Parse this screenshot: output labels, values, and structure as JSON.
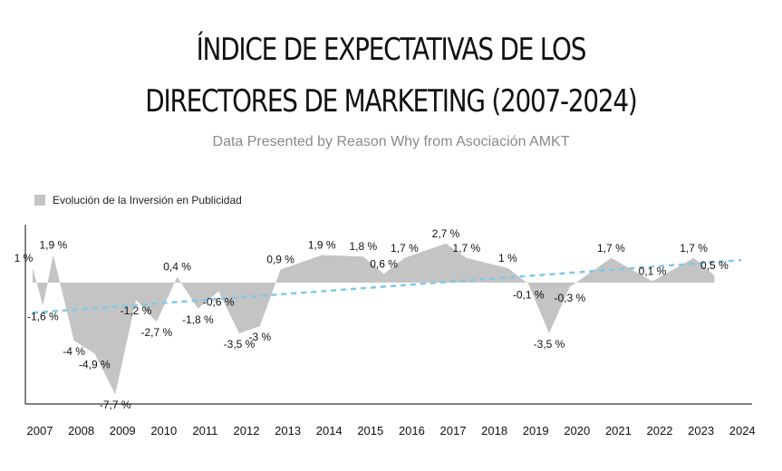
{
  "header": {
    "title_line1": "ÍNDICE DE EXPECTATIVAS DE LOS",
    "title_line2": "DIRECTORES DE MARKETING (2007-2024)",
    "subtitle": "Data Presented by Reason Why from Asociación AMKT"
  },
  "colors": {
    "area": "#c4c4c4",
    "trend": "#7fc9ea",
    "axis": "#333333"
  },
  "chart_data": {
    "type": "area",
    "title": "ÍNDICE DE EXPECTATIVAS DE LOS DIRECTORES DE MARKETING (2007-2024)",
    "subtitle": "Data Presented by Reason Why from Asociación AMKT",
    "legend": {
      "entries": [
        "Evolución de la Inversión en Publicidad"
      ],
      "position": "top-left"
    },
    "xlabel": "",
    "ylabel": "",
    "x_ticks": [
      "2007",
      "2008",
      "2009",
      "2010",
      "2011",
      "2012",
      "2013",
      "2014",
      "2015",
      "2016",
      "2017",
      "2018",
      "2019",
      "2020",
      "2021",
      "2022",
      "2023",
      "2024"
    ],
    "ylim": [
      -9,
      3
    ],
    "grid": false,
    "trendline": true,
    "series": [
      {
        "name": "Evolución de la Inversión en Publicidad",
        "points": [
          {
            "x": 2007.0,
            "y": 1.0,
            "label": "1 %"
          },
          {
            "x": 2007.25,
            "y": -1.6,
            "label": "-1,6 %"
          },
          {
            "x": 2007.5,
            "y": 1.9,
            "label": "1,9 %"
          },
          {
            "x": 2008.0,
            "y": -4.0,
            "label": "-4 %"
          },
          {
            "x": 2008.5,
            "y": -4.9,
            "label": "-4,9 %"
          },
          {
            "x": 2009.0,
            "y": -7.7,
            "label": "-7,7 %"
          },
          {
            "x": 2009.5,
            "y": -1.2,
            "label": "-1,2 %"
          },
          {
            "x": 2010.0,
            "y": -2.7,
            "label": "-2,7 %"
          },
          {
            "x": 2010.5,
            "y": 0.4,
            "label": "0,4 %"
          },
          {
            "x": 2011.0,
            "y": -1.8,
            "label": "-1,8 %"
          },
          {
            "x": 2011.5,
            "y": -0.6,
            "label": "-0,6 %"
          },
          {
            "x": 2012.0,
            "y": -3.5,
            "label": "-3,5 %"
          },
          {
            "x": 2012.5,
            "y": -3.0,
            "label": "-3 %"
          },
          {
            "x": 2013.0,
            "y": 0.9,
            "label": "0,9 %"
          },
          {
            "x": 2014.0,
            "y": 1.9,
            "label": "1,9 %"
          },
          {
            "x": 2015.0,
            "y": 1.8,
            "label": "1,8 %"
          },
          {
            "x": 2015.5,
            "y": 0.6,
            "label": "0,6 %"
          },
          {
            "x": 2016.0,
            "y": 1.7,
            "label": "1,7 %"
          },
          {
            "x": 2017.0,
            "y": 2.7,
            "label": "2,7 %"
          },
          {
            "x": 2017.5,
            "y": 1.7,
            "label": "1,7 %"
          },
          {
            "x": 2018.5,
            "y": 1.0,
            "label": "1 %"
          },
          {
            "x": 2019.0,
            "y": -0.1,
            "label": "-0,1 %"
          },
          {
            "x": 2019.5,
            "y": -3.5,
            "label": "-3,5 %"
          },
          {
            "x": 2020.0,
            "y": -0.3,
            "label": "-0,3 %"
          },
          {
            "x": 2021.0,
            "y": 1.7,
            "label": "1,7 %"
          },
          {
            "x": 2022.0,
            "y": 0.1,
            "label": "0,1 %"
          },
          {
            "x": 2023.0,
            "y": 1.7,
            "label": "1,7 %"
          },
          {
            "x": 2023.5,
            "y": 0.5,
            "label": "0,5 %"
          }
        ]
      }
    ]
  }
}
